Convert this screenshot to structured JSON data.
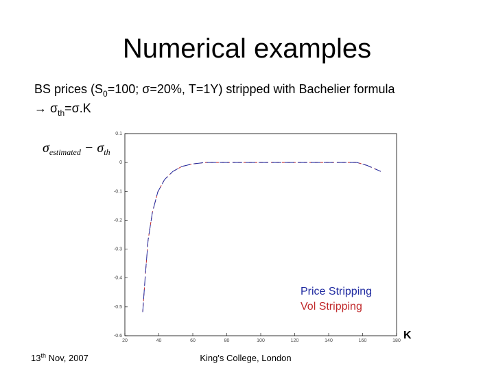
{
  "title": "Numerical examples",
  "subtitle": {
    "line1": [
      "BS prices (S",
      "0",
      "=100; σ=20%, T=1Y) stripped with Bachelier formula"
    ],
    "line2": [
      "→ σ",
      "th",
      "=σ.K"
    ]
  },
  "footer": {
    "date": [
      "13",
      "th",
      " Nov, 2007"
    ],
    "place": "King's College, London"
  },
  "chart_data": {
    "type": "line",
    "ylabel": [
      "σ",
      "estimated",
      " − σ",
      "th"
    ],
    "xlabel": "K",
    "xlim": [
      20,
      180
    ],
    "xticks": [
      20,
      40,
      60,
      80,
      100,
      120,
      140,
      160,
      180
    ],
    "ylim": [
      -0.6,
      0.1
    ],
    "yticks": [
      0.1,
      0,
      -0.1,
      -0.2,
      -0.3,
      -0.4,
      -0.5,
      -0.6
    ],
    "legend": "lower right",
    "x": [
      30.5,
      32.1,
      33.7,
      36.2,
      39.4,
      43.4,
      48.3,
      53.5,
      59.6,
      67.7,
      100,
      140,
      156.6,
      162.6,
      170.7
    ],
    "series": [
      {
        "name": "Price Stripping",
        "color": "#1f2aa0",
        "values": [
          -0.518,
          -0.387,
          -0.268,
          -0.173,
          -0.102,
          -0.059,
          -0.031,
          -0.014,
          -0.005,
          0,
          0,
          0,
          0,
          -0.01,
          -0.031
        ]
      },
      {
        "name": "Vol Stripping",
        "color": "#c0282a",
        "values": [
          -0.518,
          -0.387,
          -0.268,
          -0.173,
          -0.102,
          -0.059,
          -0.031,
          -0.014,
          -0.005,
          0,
          0,
          0,
          0,
          -0.01,
          -0.031
        ]
      }
    ]
  }
}
